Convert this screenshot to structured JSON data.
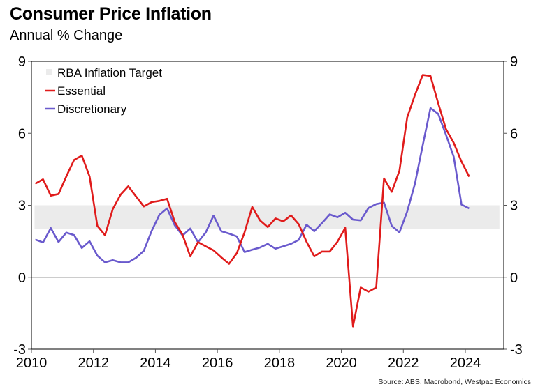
{
  "title": "Consumer Price Inflation",
  "subtitle": "Annual % Change",
  "source": "Source: ABS, Macrobond, Westpac Economics",
  "chart_data": {
    "type": "line",
    "title": "Consumer Price Inflation",
    "subtitle": "Annual % Change",
    "xlabel": "",
    "ylabel": "",
    "xlim": [
      2010,
      2025.25
    ],
    "ylim": [
      -3,
      9
    ],
    "x_ticks": [
      2010,
      2012,
      2014,
      2016,
      2018,
      2020,
      2022,
      2024
    ],
    "y_ticks": [
      -3,
      0,
      3,
      6,
      9
    ],
    "y_tick_labels": [
      "-3",
      "0",
      "3",
      "6",
      "9"
    ],
    "x_tick_labels": [
      "2010",
      "2012",
      "2014",
      "2016",
      "2018",
      "2020",
      "2022",
      "2024"
    ],
    "grid": false,
    "zero_line": true,
    "legend_position": "top-left",
    "band": {
      "name": "RBA Inflation Target",
      "y_from": 2,
      "y_to": 3,
      "x_from": 2010.1,
      "x_to": 2025.1,
      "color": "#ebebeb"
    },
    "x_start": 2010.125,
    "x_step": 0.25,
    "series": [
      {
        "name": "Essential",
        "color": "#e01b1b",
        "values": [
          3.9,
          4.08,
          3.4,
          3.47,
          4.2,
          4.89,
          5.07,
          4.2,
          2.14,
          1.75,
          2.84,
          3.44,
          3.79,
          3.37,
          2.95,
          3.13,
          3.18,
          3.27,
          2.3,
          1.77,
          0.87,
          1.46,
          1.29,
          1.12,
          0.83,
          0.56,
          1.0,
          1.87,
          2.93,
          2.37,
          2.09,
          2.45,
          2.33,
          2.58,
          2.21,
          1.48,
          0.87,
          1.07,
          1.07,
          1.48,
          2.06,
          -2.05,
          -0.43,
          -0.6,
          -0.43,
          4.12,
          3.56,
          4.44,
          6.66,
          7.6,
          8.43,
          8.39,
          7.25,
          6.18,
          5.6,
          4.82,
          4.19
        ]
      },
      {
        "name": "Discretionary",
        "color": "#6a5acd",
        "values": [
          1.57,
          1.45,
          2.05,
          1.47,
          1.86,
          1.76,
          1.22,
          1.5,
          0.9,
          0.62,
          0.71,
          0.62,
          0.62,
          0.81,
          1.1,
          1.92,
          2.6,
          2.87,
          2.16,
          1.74,
          2.03,
          1.46,
          1.87,
          2.57,
          1.92,
          1.82,
          1.7,
          1.05,
          1.15,
          1.24,
          1.39,
          1.19,
          1.29,
          1.39,
          1.56,
          2.19,
          1.92,
          2.26,
          2.62,
          2.5,
          2.69,
          2.4,
          2.37,
          2.89,
          3.05,
          3.11,
          2.14,
          1.87,
          2.74,
          3.9,
          5.5,
          7.05,
          6.81,
          5.94,
          5.02,
          3.03,
          2.87
        ]
      }
    ]
  }
}
